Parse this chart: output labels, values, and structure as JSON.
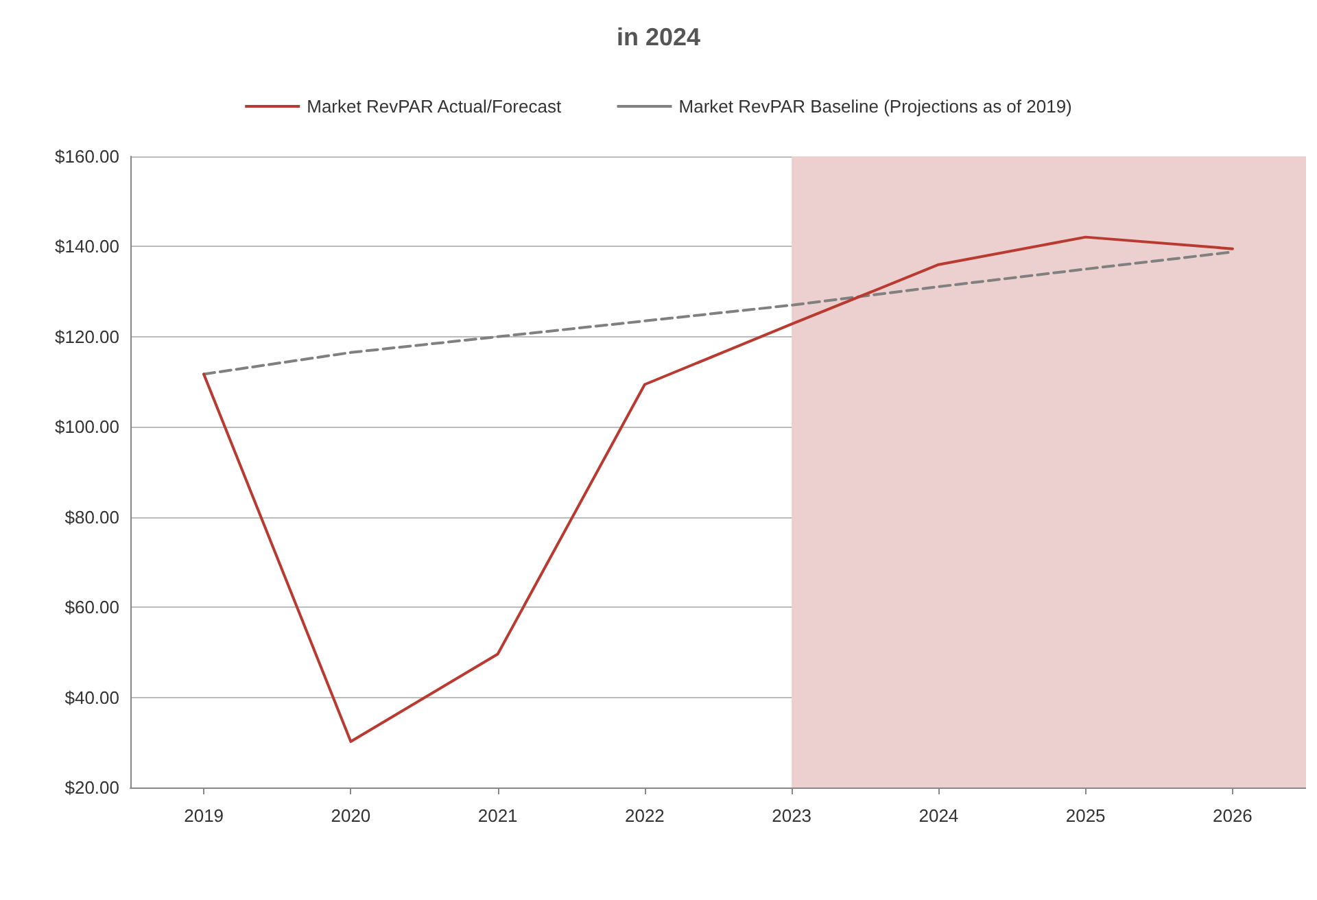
{
  "chart_data": {
    "type": "line",
    "title": "in 2024",
    "x": [
      2019,
      2020,
      2021,
      2022,
      2023,
      2024,
      2025,
      2026
    ],
    "series": [
      {
        "name": "Market RevPAR Actual/Forecast",
        "color": "#b83a30",
        "values": [
          111.7,
          30.2,
          49.6,
          109.4,
          122.8,
          136,
          142.1,
          139.5
        ],
        "line_style": "solid"
      },
      {
        "name": "Market RevPAR Baseline (Projections as of 2019)",
        "color": "#808080",
        "values": [
          111.7,
          116.5,
          120,
          123.5,
          127,
          131.1,
          135,
          138.8
        ],
        "line_style": "dashed"
      }
    ],
    "xlim": [
      2018.5,
      2026.5
    ],
    "xticks": [
      2019,
      2020,
      2021,
      2022,
      2023,
      2024,
      2025,
      2026
    ],
    "ylim": [
      20,
      160
    ],
    "yticks": [
      {
        "value": 20,
        "label": "$20.00"
      },
      {
        "value": 40,
        "label": "$40.00"
      },
      {
        "value": 60,
        "label": "$60.00"
      },
      {
        "value": 80,
        "label": "$80.00"
      },
      {
        "value": 100,
        "label": "$100.00"
      },
      {
        "value": 120,
        "label": "$120.00"
      },
      {
        "value": 140,
        "label": "$140.00"
      },
      {
        "value": 160,
        "label": "$160.00"
      }
    ],
    "bands": [
      {
        "axis": "x",
        "from": 2023,
        "to": 2026.5,
        "color": "#ecd0cf"
      }
    ],
    "grid": "y",
    "legend": "top",
    "marker": "none"
  }
}
